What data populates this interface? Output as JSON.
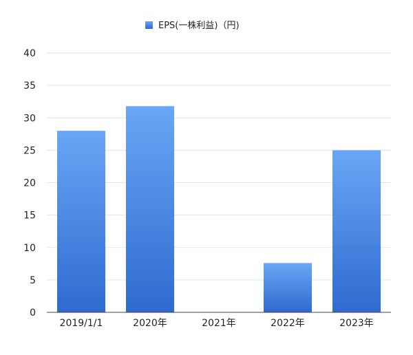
{
  "chart_data": {
    "type": "bar",
    "title": "",
    "xlabel": "",
    "ylabel": "",
    "categories": [
      "2019/1/1",
      "2020年",
      "2021年",
      "2022年",
      "2023年"
    ],
    "series": [
      {
        "name": "EPS(一株利益)（円)",
        "values": [
          28,
          31.8,
          0,
          7.6,
          25
        ]
      }
    ],
    "ylim": [
      0,
      40
    ],
    "yticks": [
      0,
      5,
      10,
      15,
      20,
      25,
      30,
      35,
      40
    ],
    "grid": true,
    "legend_position": "top-center",
    "colors": {
      "bar_top": "#6aa6f5",
      "bar_bottom": "#2f6ad0",
      "grid": "#e3e3e3",
      "axis": "#444444",
      "text": "#222222"
    }
  }
}
